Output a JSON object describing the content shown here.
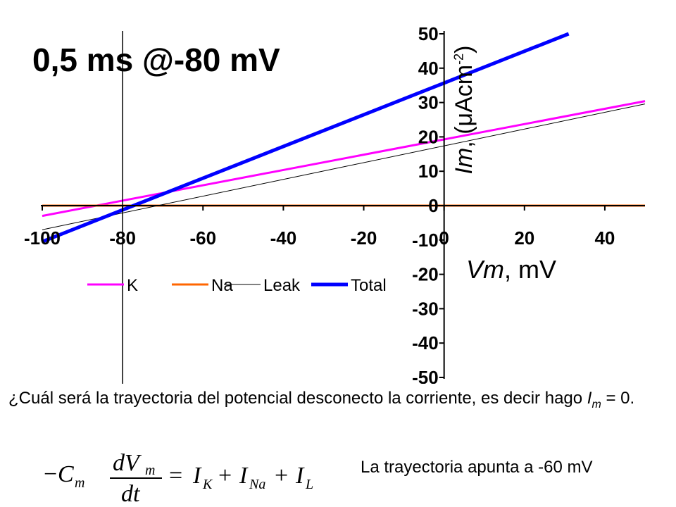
{
  "slide": {
    "title": "0,5 ms @-80 mV",
    "question_main": "¿Cuál será la trayectoria del potencial desconecto la corriente, es decir hago ",
    "question_var": "I",
    "question_sub": "m",
    "question_end": " = 0.",
    "equation": {
      "lhs_sign": "−",
      "C": "C",
      "C_sub": "m",
      "num": "dV",
      "num_sub": "m",
      "den": "dt",
      "eq": "=",
      "plus": "+",
      "I": "I",
      "subK": "K",
      "subNa": "Na",
      "subL": "L"
    },
    "answer": "La trayectoria apunta a -60 mV"
  },
  "chart_data": {
    "type": "line",
    "title": "0,5 ms @-80 mV",
    "xlabel_var": "Vm",
    "xlabel_unit": ", mV",
    "ylabel_var": "Im",
    "ylabel_unit_a": ", (μAcm",
    "ylabel_exp": "-2",
    "ylabel_unit_b": ")",
    "xlim": [
      -100,
      50
    ],
    "ylim": [
      -50,
      50
    ],
    "xticks": [
      -100,
      -80,
      -60,
      -40,
      -20,
      0,
      20,
      40
    ],
    "xtick_labels": [
      "-100",
      "-80",
      "-60",
      "-40",
      "-20",
      "0",
      "20",
      "40"
    ],
    "yticks": [
      50,
      40,
      30,
      20,
      10,
      0,
      -10,
      -20,
      -30,
      -40,
      -50
    ],
    "ytick_labels": [
      "50",
      "40",
      "30",
      "20",
      "10",
      "0",
      "-10",
      "-20",
      "-30",
      "-40",
      "-50"
    ],
    "grid": false,
    "legend_position": "bottom-left",
    "series": [
      {
        "name": "K",
        "color": "#ff00ff",
        "width": 3,
        "x": [
          -100,
          50
        ],
        "y": [
          -3,
          30.4
        ]
      },
      {
        "name": "Na",
        "color": "#ff6600",
        "width": 3,
        "x": [
          -100,
          50
        ],
        "y": [
          0,
          0
        ]
      },
      {
        "name": "Leak",
        "color": "#000000",
        "width": 1,
        "x": [
          -100,
          50
        ],
        "y": [
          -7,
          29.6
        ]
      },
      {
        "name": "Total",
        "color": "#0000ff",
        "width": 5,
        "x": [
          -100,
          31
        ],
        "y": [
          -10.5,
          50
        ]
      }
    ],
    "extra_axis_x": -80
  }
}
